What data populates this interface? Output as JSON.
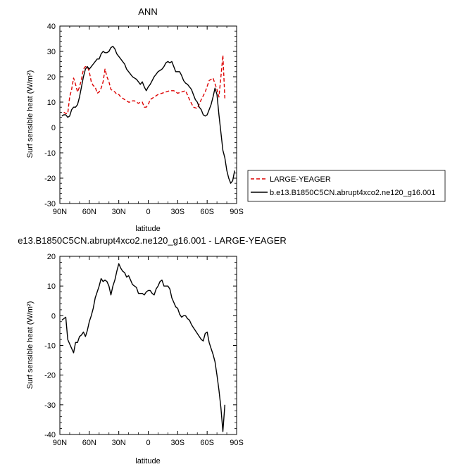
{
  "chart_data": [
    {
      "type": "line",
      "title": "ANN",
      "xlabel": "latitude",
      "ylabel": "Surf sensible heat (W/m²)",
      "xlim": [
        90,
        -90
      ],
      "ylim": [
        -30,
        40
      ],
      "xticks": [
        90,
        60,
        30,
        0,
        -30,
        -60,
        -90
      ],
      "xtick_labels": [
        "90N",
        "60N",
        "30N",
        "0",
        "30S",
        "60S",
        "90S"
      ],
      "yticks": [
        -30,
        -20,
        -10,
        0,
        10,
        20,
        30,
        40
      ],
      "ytick_labels": [
        "-30",
        "-20",
        "-10",
        "0",
        "10",
        "20",
        "30",
        "40"
      ],
      "legend": "right",
      "series": [
        {
          "name": "LARGE-YEAGER",
          "color": "#dd0000",
          "dash": "dashed",
          "x": [
            86,
            84,
            82,
            80,
            78,
            76,
            74,
            72,
            70,
            68,
            66,
            64,
            62,
            60,
            58,
            56,
            54,
            52,
            50,
            48,
            46,
            44,
            42,
            40,
            38,
            36,
            34,
            32,
            30,
            28,
            26,
            24,
            22,
            20,
            18,
            16,
            14,
            12,
            10,
            8,
            6,
            4,
            2,
            0,
            -2,
            -4,
            -6,
            -8,
            -10,
            -14,
            -18,
            -22,
            -26,
            -30,
            -34,
            -38,
            -42,
            -46,
            -50,
            -54,
            -58,
            -62,
            -66,
            -70,
            -72,
            -74,
            -76,
            -78
          ],
          "y": [
            6,
            5.5,
            5.5,
            12,
            15,
            19.5,
            17,
            14,
            16,
            19,
            23,
            24,
            24,
            22,
            18,
            16.5,
            16,
            13.5,
            14,
            15.5,
            18,
            23,
            20,
            18,
            15,
            14.5,
            14,
            13,
            13,
            12,
            11.5,
            11,
            10.5,
            10,
            10,
            10.5,
            10.5,
            10,
            9.5,
            10,
            10,
            8,
            8,
            9,
            11,
            11.5,
            12,
            12.5,
            13,
            13.5,
            14,
            14.5,
            14.5,
            13.5,
            14,
            14.5,
            11,
            8,
            7.5,
            11,
            14,
            18.5,
            19.5,
            15,
            12,
            20,
            28.5,
            11.5
          ]
        },
        {
          "name": "b.e13.B1850C5CN.abrupt4xco2.ne120_g16.001",
          "color": "#000000",
          "dash": "solid",
          "x": [
            88,
            86,
            84,
            82,
            80,
            78,
            76,
            74,
            72,
            70,
            68,
            66,
            64,
            62,
            60,
            58,
            56,
            54,
            52,
            50,
            48,
            46,
            44,
            42,
            40,
            38,
            36,
            34,
            32,
            30,
            28,
            26,
            24,
            22,
            20,
            18,
            16,
            14,
            12,
            10,
            8,
            6,
            4,
            2,
            0,
            -2,
            -4,
            -6,
            -8,
            -10,
            -12,
            -14,
            -16,
            -18,
            -20,
            -22,
            -24,
            -26,
            -28,
            -30,
            -32,
            -34,
            -36,
            -38,
            -40,
            -42,
            -44,
            -46,
            -48,
            -50,
            -52,
            -54,
            -56,
            -58,
            -60,
            -62,
            -64,
            -66,
            -68,
            -70,
            -72,
            -74,
            -76,
            -78,
            -80,
            -82,
            -84,
            -86,
            -88
          ],
          "y": [
            4.5,
            5,
            5,
            4,
            4.5,
            7,
            8,
            8,
            9,
            12,
            16,
            20,
            23,
            24,
            23,
            24,
            25,
            26,
            27,
            27,
            29,
            30,
            29.5,
            29.5,
            30,
            31.5,
            32,
            31,
            29,
            28,
            27,
            26,
            25,
            23,
            22,
            21,
            20,
            19.5,
            19,
            18,
            17,
            18,
            16,
            14.5,
            16,
            17,
            18.5,
            20,
            21,
            22,
            22.5,
            23,
            24,
            25.5,
            26,
            25.5,
            26,
            24,
            22,
            22,
            22,
            20.5,
            18.5,
            17.5,
            17,
            16,
            15,
            13,
            11,
            10,
            8,
            7,
            5,
            4.5,
            5,
            7,
            9,
            12,
            15.5,
            13,
            5,
            -2,
            -9,
            -12,
            -17,
            -20,
            -22,
            -21,
            -17
          ]
        }
      ]
    },
    {
      "type": "line",
      "title": "e13.B1850C5CN.abrupt4xco2.ne120_g16.001 - LARGE-YEAGER",
      "xlabel": "latitude",
      "ylabel": "Surf sensible heat (W/m²)",
      "xlim": [
        90,
        -90
      ],
      "ylim": [
        -40,
        20
      ],
      "xticks": [
        90,
        60,
        30,
        0,
        -30,
        -60,
        -90
      ],
      "xtick_labels": [
        "90N",
        "60N",
        "30N",
        "0",
        "30S",
        "60S",
        "90S"
      ],
      "yticks": [
        -40,
        -30,
        -20,
        -10,
        0,
        10,
        20
      ],
      "ytick_labels": [
        "-40",
        "-30",
        "-20",
        "-10",
        "0",
        "10",
        "20"
      ],
      "series": [
        {
          "color": "#000000",
          "dash": "solid",
          "x": [
            88,
            86,
            84,
            82,
            80,
            78,
            76,
            74,
            72,
            70,
            68,
            66,
            64,
            62,
            60,
            58,
            56,
            54,
            52,
            50,
            48,
            46,
            44,
            42,
            40,
            38,
            36,
            34,
            32,
            30,
            28,
            26,
            24,
            22,
            20,
            18,
            16,
            14,
            12,
            10,
            8,
            6,
            4,
            2,
            0,
            -2,
            -4,
            -6,
            -8,
            -10,
            -12,
            -14,
            -16,
            -18,
            -20,
            -22,
            -24,
            -26,
            -28,
            -30,
            -32,
            -34,
            -36,
            -38,
            -40,
            -42,
            -44,
            -46,
            -48,
            -50,
            -52,
            -54,
            -56,
            -58,
            -60,
            -62,
            -64,
            -66,
            -68,
            -70,
            -72,
            -74,
            -76,
            -78
          ],
          "y": [
            -1.5,
            -1,
            -0.5,
            -8,
            -9.5,
            -11,
            -12.5,
            -9,
            -9,
            -7,
            -6.5,
            -5.5,
            -7,
            -5,
            -2,
            0,
            2.5,
            6,
            8,
            10,
            12.5,
            11.5,
            12,
            11.5,
            10,
            7,
            10,
            12,
            15,
            17.5,
            16,
            15,
            14.5,
            13,
            13.5,
            12,
            10.5,
            10,
            9.5,
            7.5,
            7.5,
            7.5,
            7,
            8,
            8.5,
            8.5,
            7.5,
            7,
            9,
            10,
            11.5,
            12,
            10,
            10,
            10,
            9,
            6,
            4.5,
            3,
            2.5,
            0.5,
            -0.5,
            0,
            0,
            -1,
            -1.5,
            -3,
            -4,
            -5,
            -6,
            -7,
            -8,
            -8.5,
            -6,
            -5.5,
            -9,
            -11,
            -13,
            -15.5,
            -20,
            -25,
            -31,
            -39,
            -30
          ]
        }
      ]
    }
  ]
}
